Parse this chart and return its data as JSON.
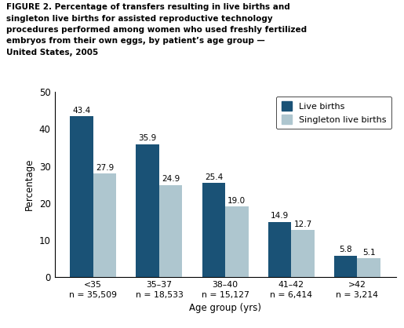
{
  "categories": [
    "<35\nn = 35,509",
    "35–37\nn = 18,533",
    "38–40\nn = 15,127",
    "41–42\nn = 6,414",
    ">42\nn = 3,214"
  ],
  "live_births": [
    43.4,
    35.9,
    25.4,
    14.9,
    5.8
  ],
  "singleton_live_births": [
    27.9,
    24.9,
    19.0,
    12.7,
    5.1
  ],
  "live_births_color": "#1A5276",
  "singleton_color": "#AEC6CF",
  "ylabel": "Percentage",
  "xlabel": "Age group (yrs)",
  "ylim": [
    0,
    50
  ],
  "yticks": [
    0,
    10,
    20,
    30,
    40,
    50
  ],
  "legend_live": "Live births",
  "legend_singleton": "Singleton live births",
  "title": "FIGURE 2. Percentage of transfers resulting in live births and\nsingleton live births for assisted reproductive technology\nprocedures performed among women who used freshly fertilized\nembryos from their own eggs, by patient’s age group —\nUnited States, 2005"
}
